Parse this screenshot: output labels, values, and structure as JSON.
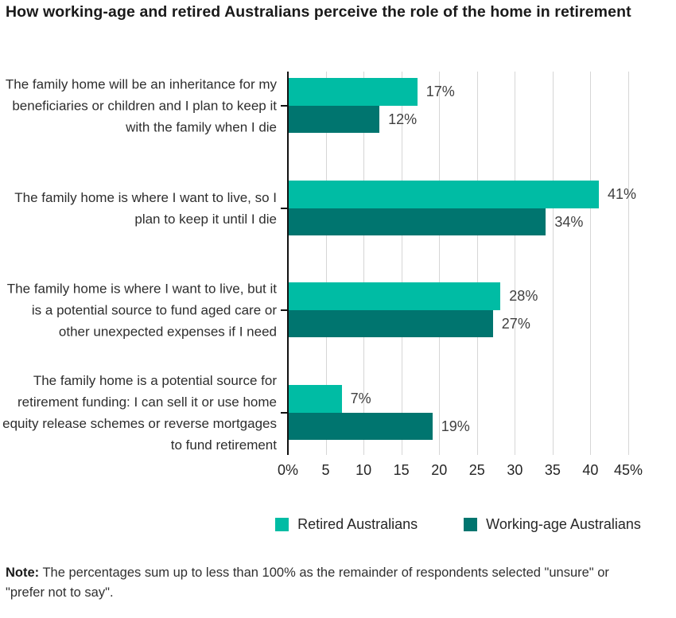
{
  "title": "How working-age and retired Australians perceive the role of the home in retirement",
  "chart_data": {
    "type": "bar",
    "orientation": "horizontal",
    "title": "How working-age and retired Australians perceive the role of the home in retirement",
    "categories": [
      "The family home will be an inheritance for my beneficiaries or children and I plan to keep it with the family when I die",
      "The family home is where I want to live, so I plan to keep it until I die",
      "The family home is where I want to live, but it is a potential source to fund aged care or other unexpected expenses if I need",
      "The family home is a potential source for retirement funding: I can sell it or use home equity release schemes or reverse mortgages to fund retirement"
    ],
    "series": [
      {
        "name": "Retired Australians",
        "color": "#00bca4",
        "values": [
          17,
          41,
          28,
          7
        ]
      },
      {
        "name": "Working-age Australians",
        "color": "#00756f",
        "values": [
          12,
          34,
          27,
          19
        ]
      }
    ],
    "data_labels": [
      [
        "17%",
        "12%"
      ],
      [
        "41%",
        "34%"
      ],
      [
        "28%",
        "27%"
      ],
      [
        "7%",
        "19%"
      ]
    ],
    "x_tick_labels": [
      "0%",
      "5",
      "10",
      "15",
      "20",
      "25",
      "30",
      "35",
      "40",
      "45%"
    ],
    "x_tick_values": [
      0,
      5,
      10,
      15,
      20,
      25,
      30,
      35,
      40,
      45
    ],
    "xlim": [
      0,
      45
    ],
    "grid": "vertical",
    "legend_position": "bottom"
  },
  "legend": {
    "items": [
      {
        "label": "Retired Australians",
        "color": "#00bca4"
      },
      {
        "label": "Working-age Australians",
        "color": "#00756f"
      }
    ]
  },
  "note": {
    "bold": "Note:",
    "text": " The percentages sum up to less than 100% as the remainder of respondents selected \"unsure\" or \"prefer not to say\"."
  }
}
